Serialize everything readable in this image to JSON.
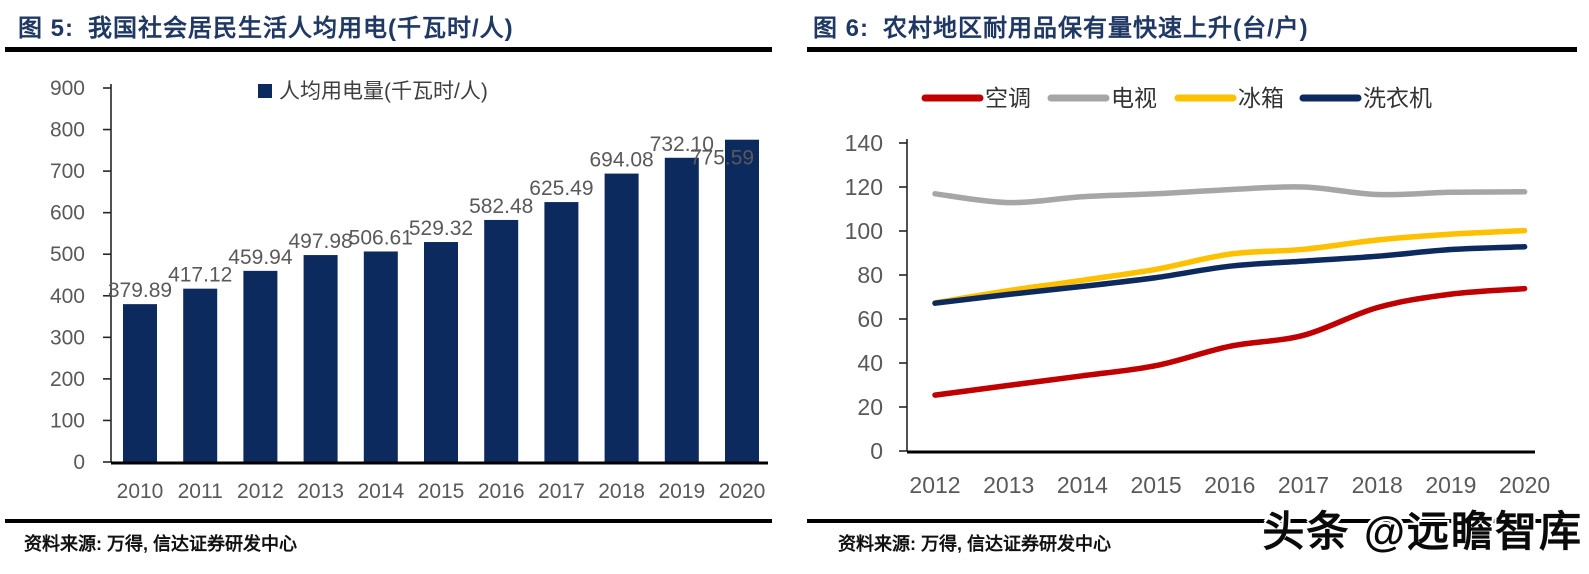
{
  "left_panel": {
    "title_prefix": "图 5:",
    "title": "我国社会居民生活人均用电(千瓦时/人)",
    "source": "资料来源: 万得, 信达证券研发中心"
  },
  "right_panel": {
    "title_prefix": "图 6:",
    "title": "农村地区耐用品保有量快速上升(台/户)",
    "source": "资料来源: 万得, 信达证券研发中心"
  },
  "watermark": "头条 @远瞻智库",
  "colors": {
    "title_navy": "#1f3864",
    "bar_navy": "#0d2a5e",
    "axis_label_gray": "#595959",
    "value_label_gray": "#595959",
    "series_red": "#c00000",
    "series_gray": "#a6a6a6",
    "series_yellow": "#ffc000",
    "series_navy": "#0d2a5e"
  },
  "chart_data": [
    {
      "type": "bar",
      "title": "图 5: 我国社会居民生活人均用电(千瓦时/人)",
      "legend": [
        "人均用电量(千瓦时/人)"
      ],
      "categories": [
        "2010",
        "2011",
        "2012",
        "2013",
        "2014",
        "2015",
        "2016",
        "2017",
        "2018",
        "2019",
        "2020"
      ],
      "values": [
        379.89,
        417.12,
        459.94,
        497.98,
        506.61,
        529.32,
        582.48,
        625.49,
        694.08,
        732.1,
        775.59
      ],
      "value_label_decimals": 2,
      "xlabel": "",
      "ylabel": "",
      "ylim": [
        0,
        900
      ],
      "ytick_step": 100,
      "grid": false,
      "legend_position": "top-center",
      "bar_color": "#0d2a5e"
    },
    {
      "type": "line",
      "title": "图 6: 农村地区耐用品保有量快速上升(台/户)",
      "categories": [
        "2012",
        "2013",
        "2014",
        "2015",
        "2016",
        "2017",
        "2018",
        "2019",
        "2020"
      ],
      "series": [
        {
          "name": "空调",
          "color": "#c00000",
          "values": [
            25.4,
            29.8,
            34.2,
            38.8,
            47.6,
            52.6,
            65.2,
            71.3,
            73.8
          ]
        },
        {
          "name": "电视",
          "color": "#a6a6a6",
          "values": [
            116.9,
            112.9,
            115.6,
            116.9,
            118.8,
            120.0,
            116.6,
            117.6,
            117.8
          ]
        },
        {
          "name": "冰箱",
          "color": "#ffc000",
          "values": [
            67.3,
            72.9,
            77.6,
            82.6,
            89.5,
            91.7,
            95.9,
            98.6,
            100.2
          ]
        },
        {
          "name": "洗衣机",
          "color": "#0d2a5e",
          "values": [
            67.2,
            71.2,
            74.8,
            78.8,
            84.0,
            86.3,
            88.5,
            91.6,
            92.8
          ]
        }
      ],
      "xlabel": "",
      "ylabel": "",
      "ylim": [
        0,
        140
      ],
      "ytick_step": 20,
      "grid": false,
      "legend_position": "top"
    }
  ]
}
